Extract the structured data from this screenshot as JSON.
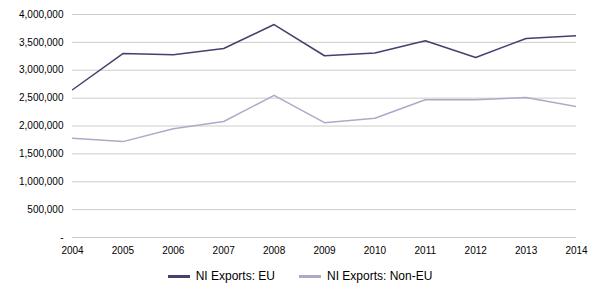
{
  "chart_data": {
    "type": "line",
    "x": [
      2004,
      2005,
      2006,
      2007,
      2008,
      2009,
      2010,
      2011,
      2012,
      2013,
      2014
    ],
    "series": [
      {
        "name": "NI Exports: EU",
        "color": "#4b3d6e",
        "values": [
          2650000,
          3300000,
          3280000,
          3390000,
          3820000,
          3260000,
          3310000,
          3530000,
          3230000,
          3570000,
          3620000
        ]
      },
      {
        "name": "NI Exports: Non-EU",
        "color": "#b0a8c8",
        "values": [
          1780000,
          1720000,
          1950000,
          2080000,
          2550000,
          2060000,
          2140000,
          2470000,
          2470000,
          2510000,
          2350000
        ]
      }
    ],
    "xlim": [
      2004,
      2014
    ],
    "xticks": [
      2004,
      2005,
      2006,
      2007,
      2008,
      2009,
      2010,
      2011,
      2012,
      2013,
      2014
    ],
    "ylim": [
      0,
      4000000
    ],
    "yticks": [
      {
        "value": 0,
        "label": "-"
      },
      {
        "value": 500000,
        "label": "500,000"
      },
      {
        "value": 1000000,
        "label": "1,000,000"
      },
      {
        "value": 1500000,
        "label": "1,500,000"
      },
      {
        "value": 2000000,
        "label": "2,000,000"
      },
      {
        "value": 2500000,
        "label": "2,500,000"
      },
      {
        "value": 3000000,
        "label": "3,000,000"
      },
      {
        "value": 3500000,
        "label": "3,500,000"
      },
      {
        "value": 4000000,
        "label": "4,000,000"
      }
    ],
    "grid": "y",
    "legend": "bottom"
  }
}
